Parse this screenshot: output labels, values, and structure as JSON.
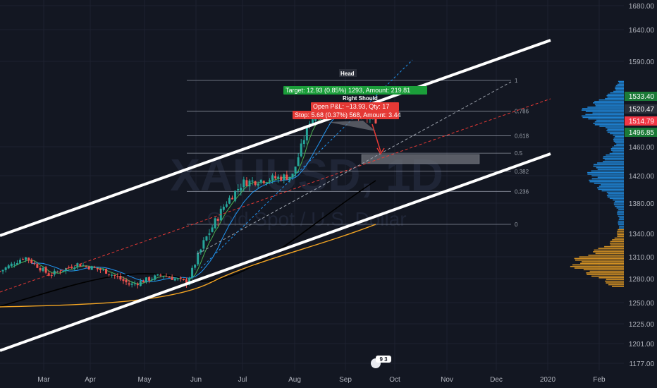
{
  "chart_data": {
    "type": "candlestick",
    "symbol_watermark": "XAUUSD, 1D",
    "watermark_subtitle": "Gold Spot / U.S. Dollar",
    "x_axis": {
      "months": [
        "Mar",
        "Apr",
        "May",
        "Jun",
        "Jul",
        "Aug",
        "Sep",
        "Oct",
        "Nov",
        "Dec",
        "2020",
        "Feb"
      ]
    },
    "y_axis": {
      "ticks": [
        1177.0,
        1201.0,
        1225.0,
        1250.0,
        1280.0,
        1310.0,
        1340.0,
        1380.0,
        1420.0,
        1460.0,
        1590.0,
        1640.0,
        1680.0
      ],
      "scale": "log"
    },
    "price_badges": [
      {
        "value": "1533.40",
        "color": "#1b7a37"
      },
      {
        "value": "1520.47",
        "color": "#2a2e39"
      },
      {
        "value": "1514.79",
        "color": "#f23645"
      },
      {
        "value": "1496.85",
        "color": "#1b7a37"
      }
    ],
    "fib_levels": [
      {
        "label": "1",
        "price": 1560
      },
      {
        "label": "0.786",
        "price": 1513
      },
      {
        "label": "0.618",
        "price": 1476
      },
      {
        "label": "0.5",
        "price": 1451
      },
      {
        "label": "0.382",
        "price": 1426
      },
      {
        "label": "0.236",
        "price": 1397
      },
      {
        "label": "0",
        "price": 1352
      }
    ],
    "trade_labels": {
      "target": "Target: 12.93 (0.85%) 1293, Amount: 219.81",
      "open_pnl": "Open P&L: −13.93, Qty: 17",
      "stop": "Stop: 5.68 (0.37%) 568, Amount: 3.44"
    },
    "pattern_labels": {
      "head": "Head",
      "right_shoulder": "Right Should"
    },
    "event_badge": "9 3",
    "colors": {
      "background": "#131722",
      "up": "#26a69a",
      "down": "#ef5350",
      "channel": "#ffffff",
      "ema_fast": "#4caf50",
      "ema_mid": "#2196f3",
      "sma_slow": "#000000",
      "sma_long": "#f5a623",
      "volume_profile_up": "#2196f3",
      "volume_profile_down": "#f5a623"
    }
  }
}
